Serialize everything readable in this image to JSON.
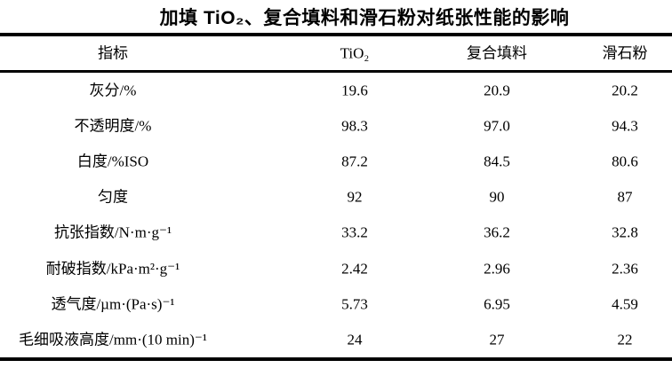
{
  "caption": "加填 TiO₂、复合填料和滑石粉对纸张性能的影响",
  "colors": {
    "background": "#ffffff",
    "text": "#000000",
    "rule": "#000000"
  },
  "table": {
    "columns": [
      "指标",
      "TiO₂",
      "复合填料",
      "滑石粉"
    ],
    "rows": [
      {
        "label": "灰分/%",
        "values": [
          "19.6",
          "20.9",
          "20.2"
        ]
      },
      {
        "label": "不透明度/%",
        "values": [
          "98.3",
          "97.0",
          "94.3"
        ]
      },
      {
        "label": "白度/%ISO",
        "values": [
          "87.2",
          "84.5",
          "80.6"
        ]
      },
      {
        "label": "匀度",
        "values": [
          "92",
          "90",
          "87"
        ]
      },
      {
        "label": "抗张指数/N·m·g⁻¹",
        "values": [
          "33.2",
          "36.2",
          "32.8"
        ]
      },
      {
        "label": "耐破指数/kPa·m²·g⁻¹",
        "values": [
          "2.42",
          "2.96",
          "2.36"
        ]
      },
      {
        "label": "透气度/µm·(Pa·s)⁻¹",
        "values": [
          "5.73",
          "6.95",
          "4.59"
        ]
      },
      {
        "label": "毛细吸液高度/mm·(10 min)⁻¹",
        "values": [
          "24",
          "27",
          "22"
        ]
      }
    ]
  },
  "chart_data": {
    "type": "table",
    "title": "加填 TiO₂、复合填料和滑石粉对纸张性能的影响",
    "columns": [
      "指标",
      "TiO₂",
      "复合填料",
      "滑石粉"
    ],
    "rows": [
      [
        "灰分/%",
        19.6,
        20.9,
        20.2
      ],
      [
        "不透明度/%",
        98.3,
        97.0,
        94.3
      ],
      [
        "白度/%ISO",
        87.2,
        84.5,
        80.6
      ],
      [
        "匀度",
        92,
        90,
        87
      ],
      [
        "抗张指数/N·m·g⁻¹",
        33.2,
        36.2,
        32.8
      ],
      [
        "耐破指数/kPa·m²·g⁻¹",
        2.42,
        2.96,
        2.36
      ],
      [
        "透气度/µm·(Pa·s)⁻¹",
        5.73,
        6.95,
        4.59
      ],
      [
        "毛细吸液高度/mm·(10 min)⁻¹",
        24,
        27,
        22
      ]
    ]
  }
}
